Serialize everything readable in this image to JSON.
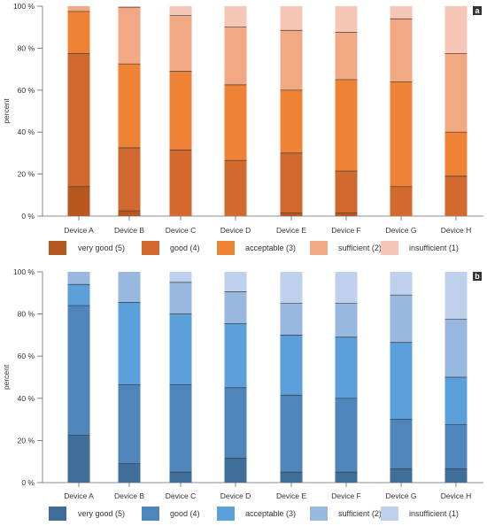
{
  "chart_data": [
    {
      "type": "bar",
      "stacked": true,
      "panel_label": "a",
      "ylabel": "percent",
      "ylim": [
        0,
        100
      ],
      "yticks": [
        "0 %",
        "20 %",
        "40 %",
        "60 %",
        "80 %",
        "100 %"
      ],
      "categories": [
        "Device A",
        "Device B",
        "Device C",
        "Device D",
        "Device E",
        "Device F",
        "Device G",
        "Device H"
      ],
      "grid": false,
      "legend_position": "bottom",
      "series": [
        {
          "name": "very good (5)",
          "color": "#b8561f",
          "values": [
            14,
            2.5,
            0,
            0,
            1.5,
            1.5,
            0,
            0
          ]
        },
        {
          "name": "good (4)",
          "color": "#d2692e",
          "values": [
            63.5,
            30,
            31.5,
            26.5,
            28.5,
            20,
            14,
            19
          ]
        },
        {
          "name": "acceptable (3)",
          "color": "#ee8235",
          "values": [
            20,
            40,
            37.5,
            36,
            30,
            43.5,
            50,
            21
          ]
        },
        {
          "name": "sufficient (2)",
          "color": "#f3a884",
          "values": [
            2.5,
            27,
            26.5,
            27.5,
            28.5,
            22.5,
            30,
            37.5
          ]
        },
        {
          "name": "insufficient (1)",
          "color": "#f6c7b6",
          "values": [
            0,
            0.5,
            4.5,
            10,
            11.5,
            12.5,
            6,
            22.5
          ]
        }
      ]
    },
    {
      "type": "bar",
      "stacked": true,
      "panel_label": "b",
      "ylabel": "percent",
      "ylim": [
        0,
        100
      ],
      "yticks": [
        "0 %",
        "20 %",
        "40 %",
        "60 %",
        "80 %",
        "100 %"
      ],
      "categories": [
        "Device A",
        "Device B",
        "Device C",
        "Device D",
        "Device E",
        "Device F",
        "Device G",
        "Device H"
      ],
      "grid": false,
      "legend_position": "bottom",
      "series": [
        {
          "name": "very good (5)",
          "color": "#406e9a",
          "values": [
            22.5,
            9,
            5,
            11.5,
            5,
            5,
            6.5,
            6.5
          ]
        },
        {
          "name": "good (4)",
          "color": "#4e86bb",
          "values": [
            61.5,
            37.5,
            41.5,
            33.5,
            36.5,
            35,
            23.5,
            21
          ]
        },
        {
          "name": "acceptable (3)",
          "color": "#5b9fdb",
          "values": [
            10,
            39,
            33.5,
            30.5,
            28.5,
            29,
            36.5,
            22.5
          ]
        },
        {
          "name": "sufficient (2)",
          "color": "#99b8df",
          "values": [
            6,
            14.5,
            15,
            15,
            15,
            16,
            22.5,
            27.5
          ]
        },
        {
          "name": "insufficient (1)",
          "color": "#bed0ec",
          "values": [
            0,
            0,
            5,
            9.5,
            15,
            15,
            11,
            22.5
          ]
        }
      ]
    }
  ]
}
